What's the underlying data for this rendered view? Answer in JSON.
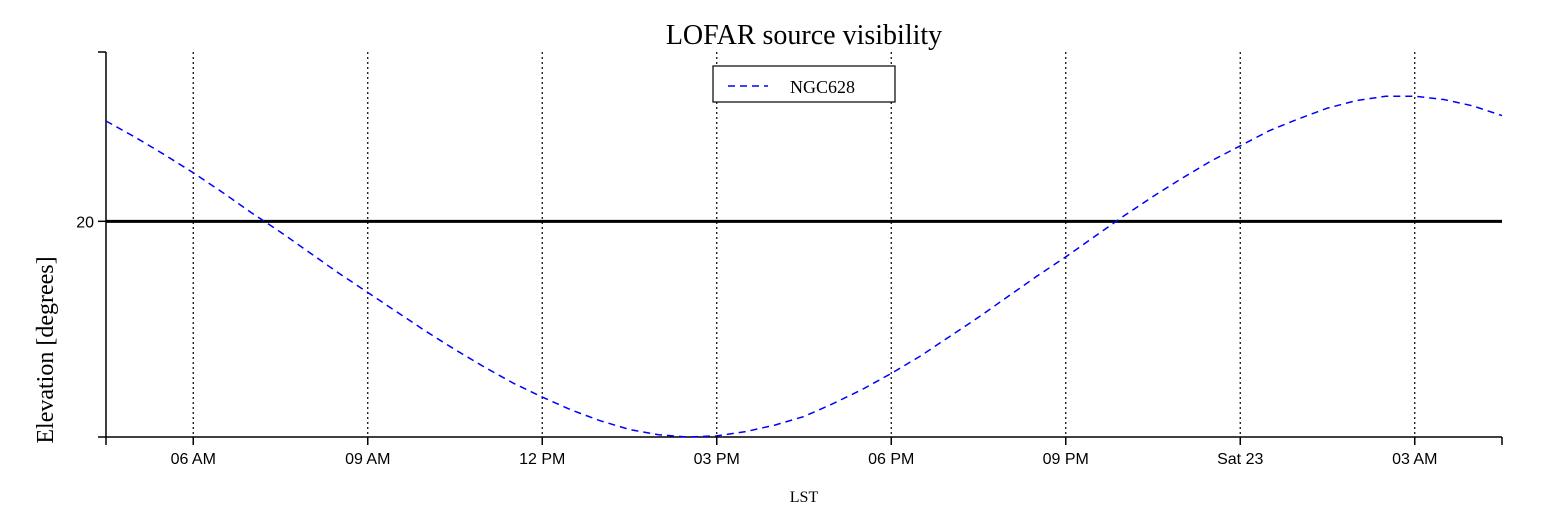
{
  "chart_data": {
    "type": "line",
    "title": "LOFAR source visibility",
    "xlabel": "LST",
    "ylabel": "Elevation [degrees]",
    "x_unit": "hours",
    "xlim": [
      4.5,
      28.5
    ],
    "ylim": [
      0,
      35.7
    ],
    "xticks": [
      {
        "value": 6,
        "label": "06 AM"
      },
      {
        "value": 9,
        "label": "09 AM"
      },
      {
        "value": 12,
        "label": "12 PM"
      },
      {
        "value": 15,
        "label": "03 PM"
      },
      {
        "value": 18,
        "label": "06 PM"
      },
      {
        "value": 21,
        "label": "09 PM"
      },
      {
        "value": 24,
        "label": "Sat 23"
      },
      {
        "value": 27,
        "label": "03 AM"
      }
    ],
    "yticks": [
      {
        "value": 20,
        "label": "20"
      }
    ],
    "vertical_gridlines": true,
    "horizontal_reference_line": 20,
    "legend_position": "top-center",
    "series": [
      {
        "name": "NGC628",
        "color": "#0000ff",
        "dash": "dashed",
        "x": [
          4.5,
          5.0,
          5.5,
          6.0,
          6.5,
          7.0,
          7.5,
          8.0,
          8.5,
          9.0,
          9.5,
          10.0,
          10.5,
          11.0,
          11.5,
          12.0,
          12.5,
          13.0,
          13.5,
          14.0,
          14.5,
          15.0,
          15.5,
          16.0,
          16.5,
          17.0,
          17.5,
          18.0,
          18.5,
          19.0,
          19.5,
          20.0,
          20.5,
          21.0,
          21.5,
          22.0,
          22.5,
          23.0,
          23.5,
          24.0,
          24.5,
          25.0,
          25.5,
          26.0,
          26.5,
          27.0,
          27.5,
          28.0,
          28.5
        ],
        "y": [
          29.3,
          27.8,
          26.2,
          24.5,
          22.7,
          20.8,
          19.0,
          17.1,
          15.2,
          13.4,
          11.6,
          9.8,
          8.1,
          6.5,
          5.0,
          3.7,
          2.5,
          1.5,
          0.7,
          0.2,
          0.0,
          0.1,
          0.5,
          1.1,
          1.9,
          3.1,
          4.4,
          5.9,
          7.5,
          9.3,
          11.1,
          13.0,
          14.9,
          16.7,
          18.6,
          20.5,
          22.3,
          24.0,
          25.6,
          27.0,
          28.4,
          29.5,
          30.5,
          31.2,
          31.6,
          31.6,
          31.3,
          30.7,
          29.8
        ]
      }
    ]
  }
}
